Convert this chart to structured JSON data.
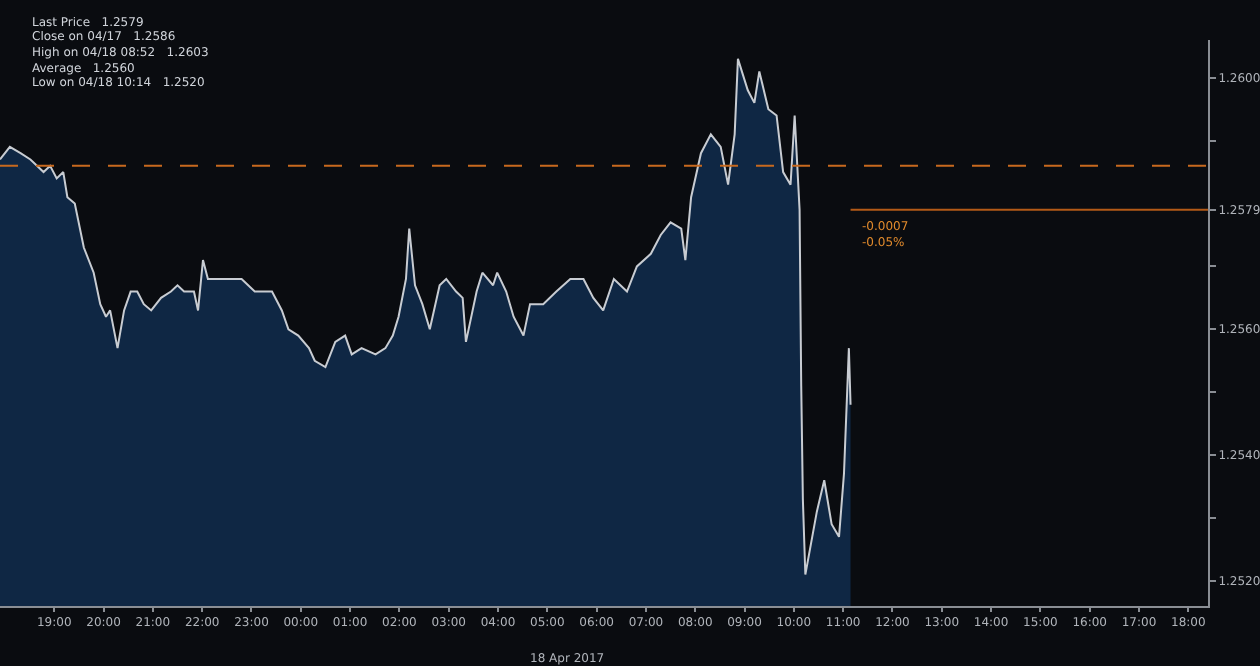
{
  "chart_data": {
    "type": "area",
    "x": [
      "2017-04-17T17:54",
      "2017-04-17T18:06",
      "2017-04-17T18:19",
      "2017-04-17T18:31",
      "2017-04-17T18:39",
      "2017-04-17T18:47",
      "2017-04-17T18:55",
      "2017-04-17T19:03",
      "2017-04-17T19:11",
      "2017-04-17T19:16",
      "2017-04-17T19:25",
      "2017-04-17T19:36",
      "2017-04-17T19:48",
      "2017-04-17T19:56",
      "2017-04-17T20:03",
      "2017-04-17T20:08",
      "2017-04-17T20:17",
      "2017-04-17T20:25",
      "2017-04-17T20:33",
      "2017-04-17T20:41",
      "2017-04-17T20:49",
      "2017-04-17T20:58",
      "2017-04-17T21:10",
      "2017-04-17T21:22",
      "2017-04-17T21:30",
      "2017-04-17T21:38",
      "2017-04-17T21:50",
      "2017-04-17T21:55",
      "2017-04-17T22:01",
      "2017-04-17T22:07",
      "2017-04-17T22:23",
      "2017-04-17T22:48",
      "2017-04-17T23:04",
      "2017-04-17T23:25",
      "2017-04-17T23:37",
      "2017-04-17T23:45",
      "2017-04-17T23:57",
      "2017-04-18T00:10",
      "2017-04-18T00:17",
      "2017-04-18T00:30",
      "2017-04-18T00:42",
      "2017-04-18T00:54",
      "2017-04-18T01:02",
      "2017-04-18T01:14",
      "2017-04-18T01:31",
      "2017-04-18T01:43",
      "2017-04-18T01:52",
      "2017-04-18T01:59",
      "2017-04-18T02:08",
      "2017-04-18T02:12",
      "2017-04-18T02:19",
      "2017-04-18T02:28",
      "2017-04-18T02:37",
      "2017-04-18T02:49",
      "2017-04-18T02:57",
      "2017-04-18T03:09",
      "2017-04-18T03:17",
      "2017-04-18T03:21",
      "2017-04-18T03:34",
      "2017-04-18T03:41",
      "2017-04-18T03:54",
      "2017-04-18T03:59",
      "2017-04-18T04:10",
      "2017-04-18T04:19",
      "2017-04-18T04:31",
      "2017-04-18T04:39",
      "2017-04-18T04:55",
      "2017-04-18T05:11",
      "2017-04-18T05:28",
      "2017-04-18T05:44",
      "2017-04-18T05:56",
      "2017-04-18T06:08",
      "2017-04-18T06:21",
      "2017-04-18T06:37",
      "2017-04-18T06:49",
      "2017-04-18T07:06",
      "2017-04-18T07:18",
      "2017-04-18T07:30",
      "2017-04-18T07:43",
      "2017-04-18T07:48",
      "2017-04-18T07:55",
      "2017-04-18T08:07",
      "2017-04-18T08:19",
      "2017-04-18T08:31",
      "2017-04-18T08:40",
      "2017-04-18T08:48",
      "2017-04-18T08:52",
      "2017-04-18T09:04",
      "2017-04-18T09:12",
      "2017-04-18T09:18",
      "2017-04-18T09:29",
      "2017-04-18T09:39",
      "2017-04-18T09:47",
      "2017-04-18T09:56",
      "2017-04-18T10:01",
      "2017-04-18T10:07",
      "2017-04-18T10:09",
      "2017-04-18T10:11",
      "2017-04-18T10:14",
      "2017-04-18T10:28",
      "2017-04-18T10:37",
      "2017-04-18T10:46",
      "2017-04-18T10:55",
      "2017-04-18T11:01",
      "2017-04-18T11:07",
      "2017-04-18T11:09"
    ],
    "series": [
      {
        "color": "#c8ccd2",
        "values": [
          1.2587,
          1.2589,
          1.2588,
          1.2587,
          1.2586,
          1.2585,
          1.2586,
          1.2584,
          1.2585,
          1.2581,
          1.258,
          1.2573,
          1.2569,
          1.2564,
          1.2562,
          1.2563,
          1.2557,
          1.2563,
          1.2566,
          1.2566,
          1.2564,
          1.2563,
          1.2565,
          1.2566,
          1.2567,
          1.2566,
          1.2566,
          1.2563,
          1.2571,
          1.2568,
          1.2568,
          1.2568,
          1.2566,
          1.2566,
          1.2563,
          1.256,
          1.2559,
          1.2557,
          1.2555,
          1.2554,
          1.2558,
          1.2559,
          1.2556,
          1.2557,
          1.2556,
          1.2557,
          1.2559,
          1.2562,
          1.2568,
          1.2576,
          1.2567,
          1.2564,
          1.256,
          1.2567,
          1.2568,
          1.2566,
          1.2565,
          1.2558,
          1.2566,
          1.2569,
          1.2567,
          1.2569,
          1.2566,
          1.2562,
          1.2559,
          1.2564,
          1.2564,
          1.2566,
          1.2568,
          1.2568,
          1.2565,
          1.2563,
          1.2568,
          1.2566,
          1.257,
          1.2572,
          1.2575,
          1.2577,
          1.2576,
          1.2571,
          1.2581,
          1.2588,
          1.2591,
          1.2589,
          1.2583,
          1.2591,
          1.2603,
          1.2598,
          1.2596,
          1.2601,
          1.2595,
          1.2594,
          1.2585,
          1.2583,
          1.2594,
          1.2579,
          1.2551,
          1.2533,
          1.2521,
          1.2531,
          1.2536,
          1.2529,
          1.2527,
          1.2537,
          1.2557,
          1.2548
        ]
      }
    ],
    "xlim": [
      "2017-04-17T17:54",
      "2017-04-18T18:24"
    ],
    "xticks": [
      {
        "value": "2017-04-17T19:00",
        "label": "19:00"
      },
      {
        "value": "2017-04-17T20:00",
        "label": "20:00"
      },
      {
        "value": "2017-04-17T21:00",
        "label": "21:00"
      },
      {
        "value": "2017-04-17T22:00",
        "label": "22:00"
      },
      {
        "value": "2017-04-17T23:00",
        "label": "23:00"
      },
      {
        "value": "2017-04-18T00:00",
        "label": "00:00"
      },
      {
        "value": "2017-04-18T01:00",
        "label": "01:00"
      },
      {
        "value": "2017-04-18T02:00",
        "label": "02:00"
      },
      {
        "value": "2017-04-18T03:00",
        "label": "03:00"
      },
      {
        "value": "2017-04-18T04:00",
        "label": "04:00"
      },
      {
        "value": "2017-04-18T05:00",
        "label": "05:00"
      },
      {
        "value": "2017-04-18T06:00",
        "label": "06:00"
      },
      {
        "value": "2017-04-18T07:00",
        "label": "07:00"
      },
      {
        "value": "2017-04-18T08:00",
        "label": "08:00"
      },
      {
        "value": "2017-04-18T09:00",
        "label": "09:00"
      },
      {
        "value": "2017-04-18T10:00",
        "label": "10:00"
      },
      {
        "value": "2017-04-18T11:00",
        "label": "11:00"
      },
      {
        "value": "2017-04-18T12:00",
        "label": "12:00"
      },
      {
        "value": "2017-04-18T13:00",
        "label": "13:00"
      },
      {
        "value": "2017-04-18T14:00",
        "label": "14:00"
      },
      {
        "value": "2017-04-18T15:00",
        "label": "15:00"
      },
      {
        "value": "2017-04-18T16:00",
        "label": "16:00"
      },
      {
        "value": "2017-04-18T17:00",
        "label": "17:00"
      },
      {
        "value": "2017-04-18T18:00",
        "label": "18:00"
      }
    ],
    "ylim": [
      1.2516,
      1.2606
    ],
    "yticks": [
      {
        "value": 1.252,
        "label": "1.2520"
      },
      {
        "value": 1.253,
        "label": null
      },
      {
        "value": 1.254,
        "label": "1.2540"
      },
      {
        "value": 1.255,
        "label": null
      },
      {
        "value": 1.256,
        "label": "1.2560"
      },
      {
        "value": 1.257,
        "label": null
      },
      {
        "value": 1.2579,
        "label": "1.2579"
      },
      {
        "value": 1.259,
        "label": null
      },
      {
        "value": 1.26,
        "label": "1.2600"
      }
    ],
    "ref_lines": [
      {
        "axis": "y",
        "value": 1.2586,
        "color": "#c8691e",
        "line_style": "dashed"
      },
      {
        "axis": "y",
        "value": 1.2579,
        "color": "#b35a17",
        "line_style": "solid"
      }
    ],
    "annotations": [
      "Last Price   1.2579",
      "Close on 04/17   1.2586",
      "High on 04/18 08:52   1.2603",
      "Average   1.2560",
      "Low on 04/18 10:14   1.2520",
      "-0.0007",
      "-0.05%",
      "18 Apr 2017"
    ],
    "grid": false,
    "legend": false
  }
}
